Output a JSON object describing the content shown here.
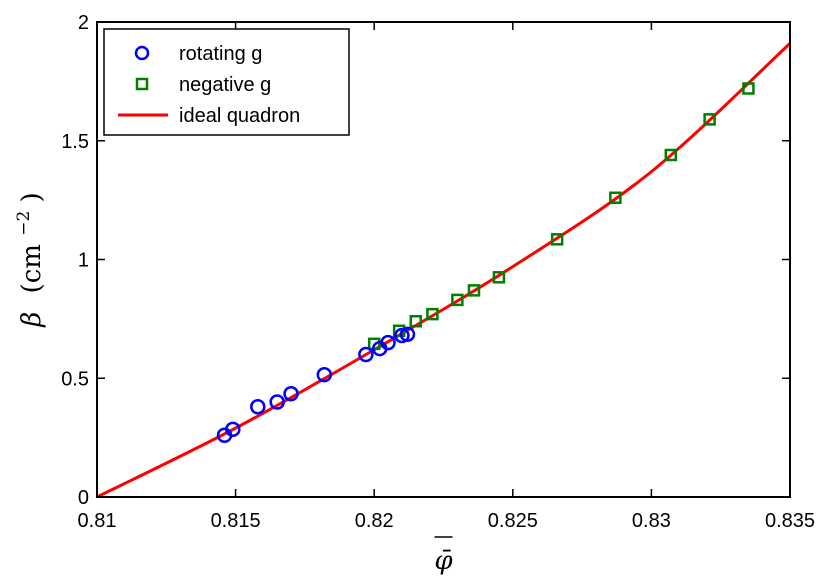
{
  "chart_data": {
    "type": "scatter",
    "xlabel": "φ̄",
    "ylabel": {
      "symbol": "β",
      "unit": "(cm",
      "exponent": "−2",
      "close": ")"
    },
    "xlim": [
      0.81,
      0.835
    ],
    "ylim": [
      0,
      2
    ],
    "x_ticks": [
      "0.81",
      "0.815",
      "0.82",
      "0.825",
      "0.83",
      "0.835"
    ],
    "y_ticks": [
      "0",
      "0.5",
      "1",
      "1.5",
      "2"
    ],
    "grid": false,
    "legend_position": "top-left",
    "series": [
      {
        "name": "rotating g",
        "marker": "circle",
        "color": "#0000ff",
        "points": [
          [
            0.8146,
            0.26
          ],
          [
            0.8149,
            0.285
          ],
          [
            0.8158,
            0.38
          ],
          [
            0.8165,
            0.4
          ],
          [
            0.817,
            0.435
          ],
          [
            0.8182,
            0.515
          ],
          [
            0.8197,
            0.6
          ],
          [
            0.8202,
            0.625
          ],
          [
            0.8205,
            0.65
          ],
          [
            0.821,
            0.68
          ],
          [
            0.8212,
            0.685
          ]
        ]
      },
      {
        "name": "negative g",
        "marker": "square",
        "color": "#008000",
        "points": [
          [
            0.82,
            0.645
          ],
          [
            0.8209,
            0.7
          ],
          [
            0.8215,
            0.74
          ],
          [
            0.8221,
            0.77
          ],
          [
            0.823,
            0.83
          ],
          [
            0.8236,
            0.87
          ],
          [
            0.8245,
            0.925
          ],
          [
            0.8266,
            1.085
          ],
          [
            0.8287,
            1.26
          ],
          [
            0.8307,
            1.44
          ],
          [
            0.8321,
            1.59
          ],
          [
            0.8335,
            1.72
          ]
        ]
      },
      {
        "name": "ideal quadron",
        "marker": "line",
        "color": "#ff0000",
        "points": [
          [
            0.81,
            0.0
          ],
          [
            0.815,
            0.29
          ],
          [
            0.82,
            0.62
          ],
          [
            0.825,
            0.97
          ],
          [
            0.83,
            1.37
          ],
          [
            0.835,
            1.91
          ]
        ]
      }
    ]
  }
}
